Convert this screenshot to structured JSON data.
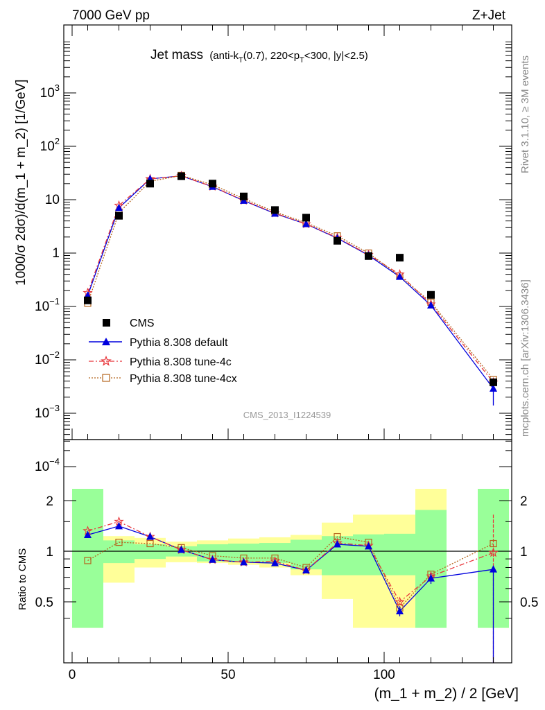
{
  "header": {
    "left": "7000 GeV pp",
    "right": "Z+Jet"
  },
  "title": {
    "main": "Jet mass",
    "sub_prefix": "(anti-k",
    "sub_T1": "T",
    "sub_mid": "(0.7), 220<p",
    "sub_T2": "T",
    "sub_suffix": "<300, |y|<2.5)"
  },
  "ylabel_top": "1000/σ 2dσ)/d(m_1 + m_2) [1/GeV]",
  "ylabel_bottom": "Ratio to CMS",
  "xlabel": "(m_1 + m_2) / 2 [GeV]",
  "side_text_top": "Rivet 3.1.10, ≥ 3M events",
  "side_text_bottom": "mcplots.cern.ch [arXiv:1306.3436]",
  "analysis_label": "CMS_2013_I1224539",
  "colors": {
    "data": "#000000",
    "default": "#0000dd",
    "tune4c": "#e8353a",
    "tune4cx": "#b5651d",
    "band_inner": "#99ff99",
    "band_outer": "#ffff99"
  },
  "chart_data": {
    "type": "scatter",
    "upper": {
      "scale": "log",
      "ylim": [
        5e-05,
        1500
      ],
      "xlim": [
        -5,
        140
      ],
      "ytick_labels": [
        "10^-4",
        "10^-3",
        "10^-2",
        "10^-1",
        "1",
        "10",
        "10^2",
        "10^3"
      ],
      "xtick_labels": [
        "0",
        "50",
        "100"
      ],
      "legend": [
        "CMS",
        "Pythia 8.308 default",
        "Pythia 8.308 tune-4c",
        "Pythia 8.308 tune-4cx"
      ],
      "legend_placement": "lower-left",
      "x": [
        5,
        15,
        25,
        35,
        45,
        55,
        65,
        75,
        85,
        95,
        105,
        115,
        135
      ],
      "series": [
        {
          "name": "CMS",
          "values": [
            0.13,
            5.0,
            20.0,
            27.5,
            20.0,
            11.5,
            6.4,
            4.6,
            1.7,
            0.88,
            0.82,
            0.165,
            0.0038
          ]
        },
        {
          "name": "Pythia 8.308 default",
          "values": [
            0.16,
            7.0,
            24.5,
            28.0,
            17.5,
            9.6,
            5.5,
            3.5,
            1.9,
            0.91,
            0.36,
            0.105,
            0.0029
          ]
        },
        {
          "name": "Pythia 8.308 tune-4c",
          "values": [
            0.18,
            7.8,
            24.5,
            28.0,
            17.6,
            9.7,
            5.6,
            3.5,
            1.95,
            0.93,
            0.4,
            0.11,
            0.0038
          ]
        },
        {
          "name": "Pythia 8.308 tune-4cx",
          "values": [
            0.115,
            5.7,
            22.0,
            28.5,
            19.0,
            10.5,
            5.9,
            3.7,
            2.1,
            1.0,
            0.37,
            0.12,
            0.0043
          ]
        }
      ]
    },
    "lower": {
      "ylabel": "Ratio to CMS",
      "ylim": [
        0.35,
        2.35
      ],
      "ytick_labels": [
        "0.5",
        "1",
        "2"
      ],
      "x": [
        5,
        15,
        25,
        35,
        45,
        55,
        65,
        75,
        85,
        95,
        105,
        115,
        135
      ],
      "series": [
        {
          "name": "Pythia 8.308 default",
          "values": [
            1.25,
            1.41,
            1.22,
            1.02,
            0.89,
            0.86,
            0.85,
            0.77,
            1.1,
            1.07,
            0.44,
            0.69,
            0.78
          ]
        },
        {
          "name": "Pythia 8.308 tune-4c",
          "values": [
            1.32,
            1.5,
            1.22,
            1.02,
            0.89,
            0.86,
            0.87,
            0.77,
            1.12,
            1.08,
            0.5,
            0.71,
            0.98
          ]
        },
        {
          "name": "Pythia 8.308 tune-4cx",
          "values": [
            0.88,
            1.13,
            1.11,
            1.05,
            0.94,
            0.91,
            0.91,
            0.8,
            1.22,
            1.13,
            0.46,
            0.73,
            1.11
          ]
        }
      ],
      "bands": [
        {
          "x": [
            0,
            10
          ],
          "inner": [
            0.35,
            2.35
          ],
          "outer": [
            0.35,
            2.35
          ]
        },
        {
          "x": [
            10,
            20
          ],
          "inner": [
            0.85,
            1.16
          ],
          "outer": [
            0.65,
            1.23
          ]
        },
        {
          "x": [
            20,
            30
          ],
          "inner": [
            0.9,
            1.1
          ],
          "outer": [
            0.8,
            1.2
          ]
        },
        {
          "x": [
            30,
            40
          ],
          "inner": [
            0.93,
            1.07
          ],
          "outer": [
            0.86,
            1.14
          ]
        },
        {
          "x": [
            40,
            50
          ],
          "inner": [
            0.87,
            1.1
          ],
          "outer": [
            0.85,
            1.16
          ]
        },
        {
          "x": [
            50,
            60
          ],
          "inner": [
            0.86,
            1.11
          ],
          "outer": [
            0.83,
            1.19
          ]
        },
        {
          "x": [
            60,
            70
          ],
          "inner": [
            0.85,
            1.12
          ],
          "outer": [
            0.8,
            1.21
          ]
        },
        {
          "x": [
            70,
            80
          ],
          "inner": [
            0.78,
            1.17
          ],
          "outer": [
            0.72,
            1.25
          ]
        },
        {
          "x": [
            80,
            90
          ],
          "inner": [
            0.72,
            1.23
          ],
          "outer": [
            0.52,
            1.48
          ]
        },
        {
          "x": [
            90,
            100
          ],
          "inner": [
            0.72,
            1.26
          ],
          "outer": [
            0.35,
            1.65
          ]
        },
        {
          "x": [
            100,
            110
          ],
          "inner": [
            0.72,
            1.27
          ],
          "outer": [
            0.35,
            1.65
          ]
        },
        {
          "x": [
            110,
            120
          ],
          "inner": [
            0.35,
            1.76
          ],
          "outer": [
            0.35,
            2.35
          ]
        },
        {
          "x": [
            130,
            140
          ],
          "inner": [
            0.35,
            2.35
          ],
          "outer": [
            0.35,
            2.35
          ]
        }
      ]
    }
  }
}
